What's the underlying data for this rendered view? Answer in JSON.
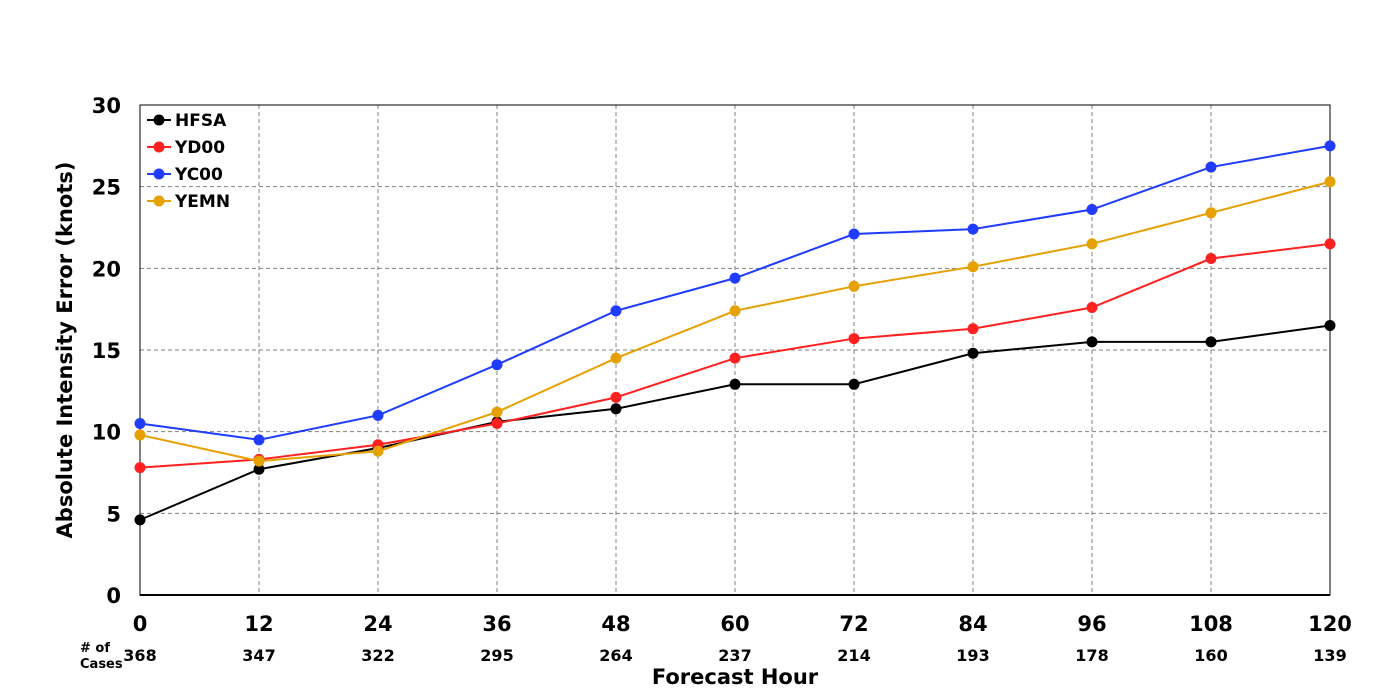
{
  "chart_data": {
    "type": "line",
    "xlabel": "Forecast Hour",
    "ylabel": "Absolute Intensity Error (knots)",
    "x": [
      0,
      12,
      24,
      36,
      48,
      60,
      72,
      84,
      96,
      108,
      120
    ],
    "xlim": [
      0,
      120
    ],
    "ylim": [
      0,
      30
    ],
    "yticks": [
      0,
      5,
      10,
      15,
      20,
      25,
      30
    ],
    "grid": true,
    "legend_position": "top-left",
    "series": [
      {
        "name": "HFSA",
        "color": "#000000",
        "values": [
          4.6,
          7.7,
          9.0,
          10.6,
          11.4,
          12.9,
          12.9,
          14.8,
          15.5,
          15.5,
          16.5
        ]
      },
      {
        "name": "YD00",
        "color": "#ff2020",
        "values": [
          7.8,
          8.3,
          9.2,
          10.5,
          12.1,
          14.5,
          15.7,
          16.3,
          17.6,
          20.6,
          21.5
        ]
      },
      {
        "name": "YC00",
        "color": "#1f3cff",
        "values": [
          10.5,
          9.5,
          11.0,
          14.1,
          17.4,
          19.4,
          22.1,
          22.4,
          23.6,
          26.2,
          27.5
        ]
      },
      {
        "name": "YEMN",
        "color": "#e6a000",
        "values": [
          9.8,
          8.2,
          8.8,
          11.2,
          14.5,
          17.4,
          18.9,
          20.1,
          21.5,
          23.4,
          25.3
        ]
      }
    ],
    "cases_label": "# of Cases",
    "cases": [
      368,
      347,
      322,
      295,
      264,
      237,
      214,
      193,
      178,
      160,
      139
    ]
  }
}
